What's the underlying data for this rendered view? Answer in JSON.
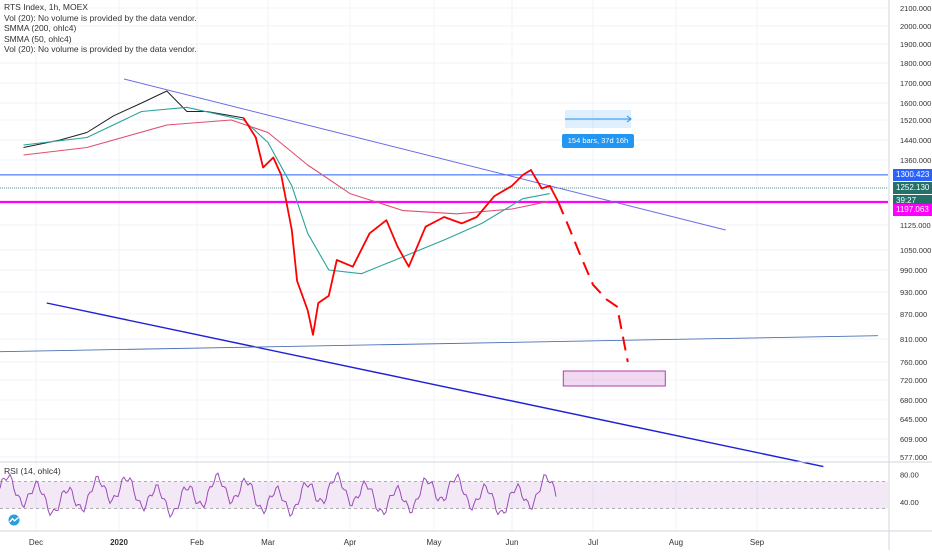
{
  "legend": {
    "title": "RTS Index, 1h, MOEX",
    "lines": [
      "Vol (20): No volume is provided by the data vendor.",
      "SMMA (200, ohlc4)",
      "SMMA (50, ohlc4)",
      "Vol (20): No volume is provided by the data vendor."
    ]
  },
  "rsi_legend": "RSI (14, ohlc4)",
  "price_tags": [
    {
      "text": "1300.423",
      "color": "#2962ff"
    },
    {
      "text": "1252.130",
      "color": "#26706a"
    },
    {
      "text": "39:27",
      "color": "#26706a"
    },
    {
      "text": "1197.063",
      "color": "#ff00ff"
    }
  ],
  "measure_label": "154 bars, 37d 16h",
  "colors": {
    "price": "#222222",
    "smma50": "#2aa39a",
    "smma200": "#e05070",
    "projection": "#ff0000",
    "trendline": "#6a6ae6",
    "support": "#1f1fd6",
    "magenta": "#ff00ff",
    "rsi": "#9b4bb8"
  },
  "chart_data": [
    {
      "type": "line",
      "title": "RTS Index, 1h, MOEX",
      "x_ticks": [
        "Dec",
        "2020",
        "Feb",
        "Mar",
        "Apr",
        "May",
        "Jun",
        "Jul",
        "Aug",
        "Sep"
      ],
      "y_ticks": [
        2100,
        2000,
        1900,
        1800,
        1700,
        1600,
        1520,
        1440,
        1360,
        1300,
        1252,
        1197,
        1125,
        1050,
        990,
        930,
        870,
        810,
        760,
        720,
        680,
        645,
        609,
        577
      ],
      "y_scale": "log",
      "series": [
        {
          "values": [
            [
              "2019-11-28",
              1410
            ],
            [
              "2019-12-10",
              1440
            ],
            [
              "2019-12-20",
              1470
            ],
            [
              "2019-12-30",
              1540
            ],
            [
              "2020-01-10",
              1600
            ],
            [
              "2020-01-20",
              1660
            ],
            [
              "2020-01-28",
              1560
            ],
            [
              "2020-02-05",
              1560
            ],
            [
              "2020-02-15",
              1540
            ],
            [
              "2020-02-20",
              1530
            ],
            [
              "2020-02-25",
              1450
            ],
            [
              "2020-02-28",
              1330
            ],
            [
              "2020-03-03",
              1370
            ],
            [
              "2020-03-06",
              1300
            ],
            [
              "2020-03-10",
              1110
            ],
            [
              "2020-03-12",
              960
            ],
            [
              "2020-03-16",
              880
            ],
            [
              "2020-03-18",
              820
            ],
            [
              "2020-03-20",
              900
            ],
            [
              "2020-03-24",
              920
            ],
            [
              "2020-03-27",
              1020
            ],
            [
              "2020-04-02",
              1000
            ],
            [
              "2020-04-08",
              1100
            ],
            [
              "2020-04-14",
              1140
            ],
            [
              "2020-04-18",
              1060
            ],
            [
              "2020-04-22",
              1000
            ],
            [
              "2020-04-28",
              1120
            ],
            [
              "2020-05-05",
              1150
            ],
            [
              "2020-05-12",
              1130
            ],
            [
              "2020-05-18",
              1150
            ],
            [
              "2020-05-25",
              1220
            ],
            [
              "2020-06-01",
              1260
            ],
            [
              "2020-06-05",
              1300
            ],
            [
              "2020-06-08",
              1320
            ],
            [
              "2020-06-12",
              1250
            ],
            [
              "2020-06-15",
              1260
            ],
            [
              "2020-06-18",
              1200
            ]
          ]
        },
        {
          "name": "SMMA (50, ohlc4)",
          "values": [
            [
              "2019-11-28",
              1420
            ],
            [
              "2019-12-20",
              1450
            ],
            [
              "2020-01-10",
              1560
            ],
            [
              "2020-01-28",
              1580
            ],
            [
              "2020-02-20",
              1520
            ],
            [
              "2020-03-01",
              1430
            ],
            [
              "2020-03-10",
              1260
            ],
            [
              "2020-03-16",
              1100
            ],
            [
              "2020-03-24",
              990
            ],
            [
              "2020-04-05",
              980
            ],
            [
              "2020-04-20",
              1030
            ],
            [
              "2020-05-05",
              1080
            ],
            [
              "2020-05-20",
              1130
            ],
            [
              "2020-06-05",
              1210
            ],
            [
              "2020-06-15",
              1230
            ]
          ]
        },
        {
          "name": "SMMA (200, ohlc4)",
          "values": [
            [
              "2019-11-28",
              1380
            ],
            [
              "2019-12-20",
              1410
            ],
            [
              "2020-01-20",
              1500
            ],
            [
              "2020-02-15",
              1520
            ],
            [
              "2020-03-01",
              1470
            ],
            [
              "2020-03-16",
              1340
            ],
            [
              "2020-04-01",
              1230
            ],
            [
              "2020-04-20",
              1170
            ],
            [
              "2020-05-10",
              1160
            ],
            [
              "2020-06-01",
              1175
            ],
            [
              "2020-06-15",
              1200
            ]
          ]
        }
      ],
      "projection": [
        [
          "2020-06-18",
          1200
        ],
        [
          "2020-06-22",
          1120
        ],
        [
          "2020-06-26",
          1040
        ],
        [
          "2020-07-01",
          950
        ],
        [
          "2020-07-06",
          910
        ],
        [
          "2020-07-10",
          890
        ],
        [
          "2020-07-14",
          760
        ]
      ],
      "trendlines": [
        {
          "from": [
            "2020-01-03",
            1720
          ],
          "to": [
            "2020-08-20",
            1110
          ]
        },
        {
          "from": [
            "2019-12-05",
            900
          ],
          "to": [
            "2020-09-25",
            560
          ]
        },
        {
          "from": [
            "2019-11-20",
            782
          ],
          "to": [
            "2020-10-15",
            818
          ]
        }
      ],
      "horizontal_lines": [
        1300.423,
        1252.13,
        1197.063
      ],
      "target_zone": {
        "from": "2020-06-20",
        "to": "2020-07-28",
        "low": 708,
        "high": 740
      }
    },
    {
      "type": "line",
      "title": "RSI (14, ohlc4)",
      "y_ticks": [
        80.0,
        40.0
      ],
      "band": [
        30,
        70
      ]
    }
  ]
}
